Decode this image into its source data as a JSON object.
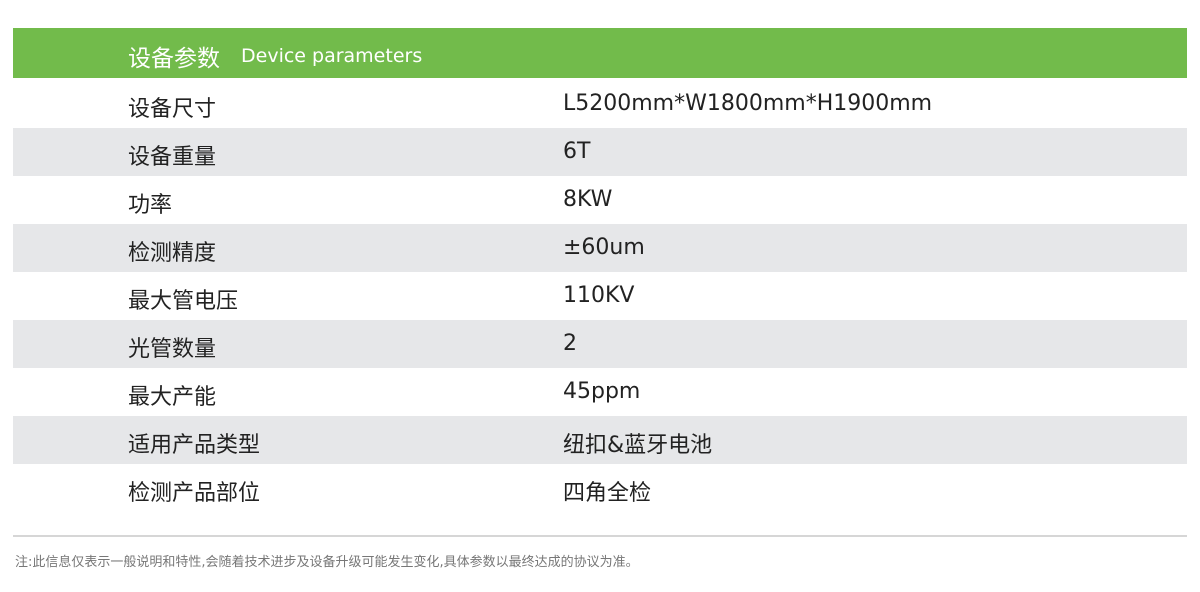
{
  "header": {
    "title_zh": "设备参数",
    "title_en": "Device parameters",
    "color": "#72bb4b"
  },
  "rows": [
    {
      "label": "设备尺寸",
      "value": "L5200mm*W1800mm*H1900mm"
    },
    {
      "label": "设备重量",
      "value": "6T"
    },
    {
      "label": "功率",
      "value": "8KW"
    },
    {
      "label": "检测精度",
      "value": "±60um"
    },
    {
      "label": "最大管电压",
      "value": "110KV"
    },
    {
      "label": "光管数量",
      "value": "2"
    },
    {
      "label": "最大产能",
      "value": "45ppm"
    },
    {
      "label": "适用产品类型",
      "value": "纽扣&蓝牙电池"
    },
    {
      "label": "检测产品部位",
      "value": "四角全检"
    }
  ],
  "note": "注:此信息仅表示一般说明和特性,会随着技术进步及设备升级可能发生变化,具体参数以最终达成的协议为准。"
}
